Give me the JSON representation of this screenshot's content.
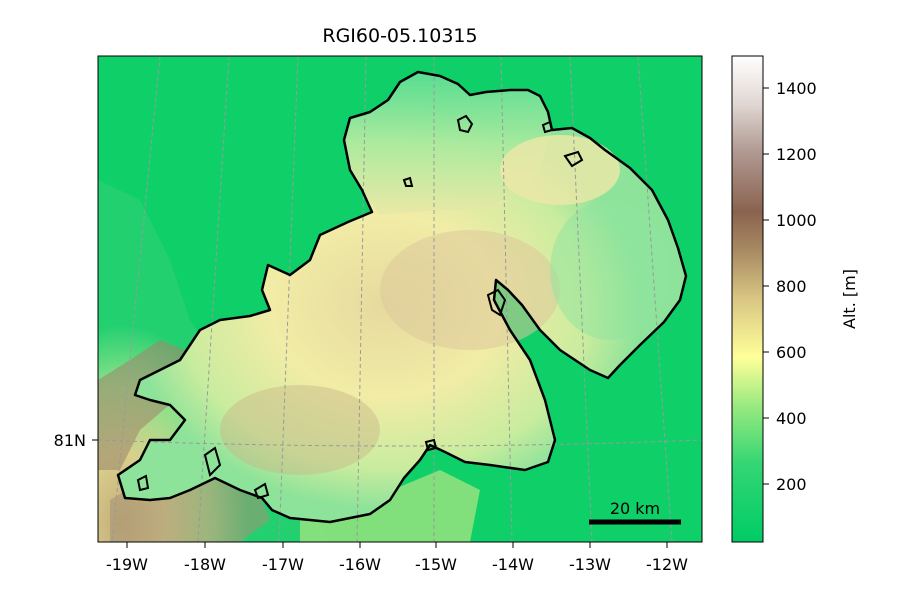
{
  "title": "RGI60-05.10315",
  "map": {
    "longitude_labels": [
      "-19W",
      "-18W",
      "-17W",
      "-16W",
      "-15W",
      "-14W",
      "-13W",
      "-12W"
    ],
    "latitude_labels": [
      "81N"
    ],
    "scalebar_label": "20 km",
    "outline_color": "#000000",
    "grid_color": "#9a9a9a"
  },
  "colorbar": {
    "label": "Alt. [m]",
    "ticks": [
      "200",
      "400",
      "600",
      "800",
      "1000",
      "1200",
      "1400"
    ],
    "range": [
      20,
      1500
    ],
    "colormap": "terrain",
    "colors": [
      "#00cc66",
      "#66e07a",
      "#ffff99",
      "#c8b16e",
      "#8c6450",
      "#c7b4ad",
      "#ffffff"
    ]
  }
}
